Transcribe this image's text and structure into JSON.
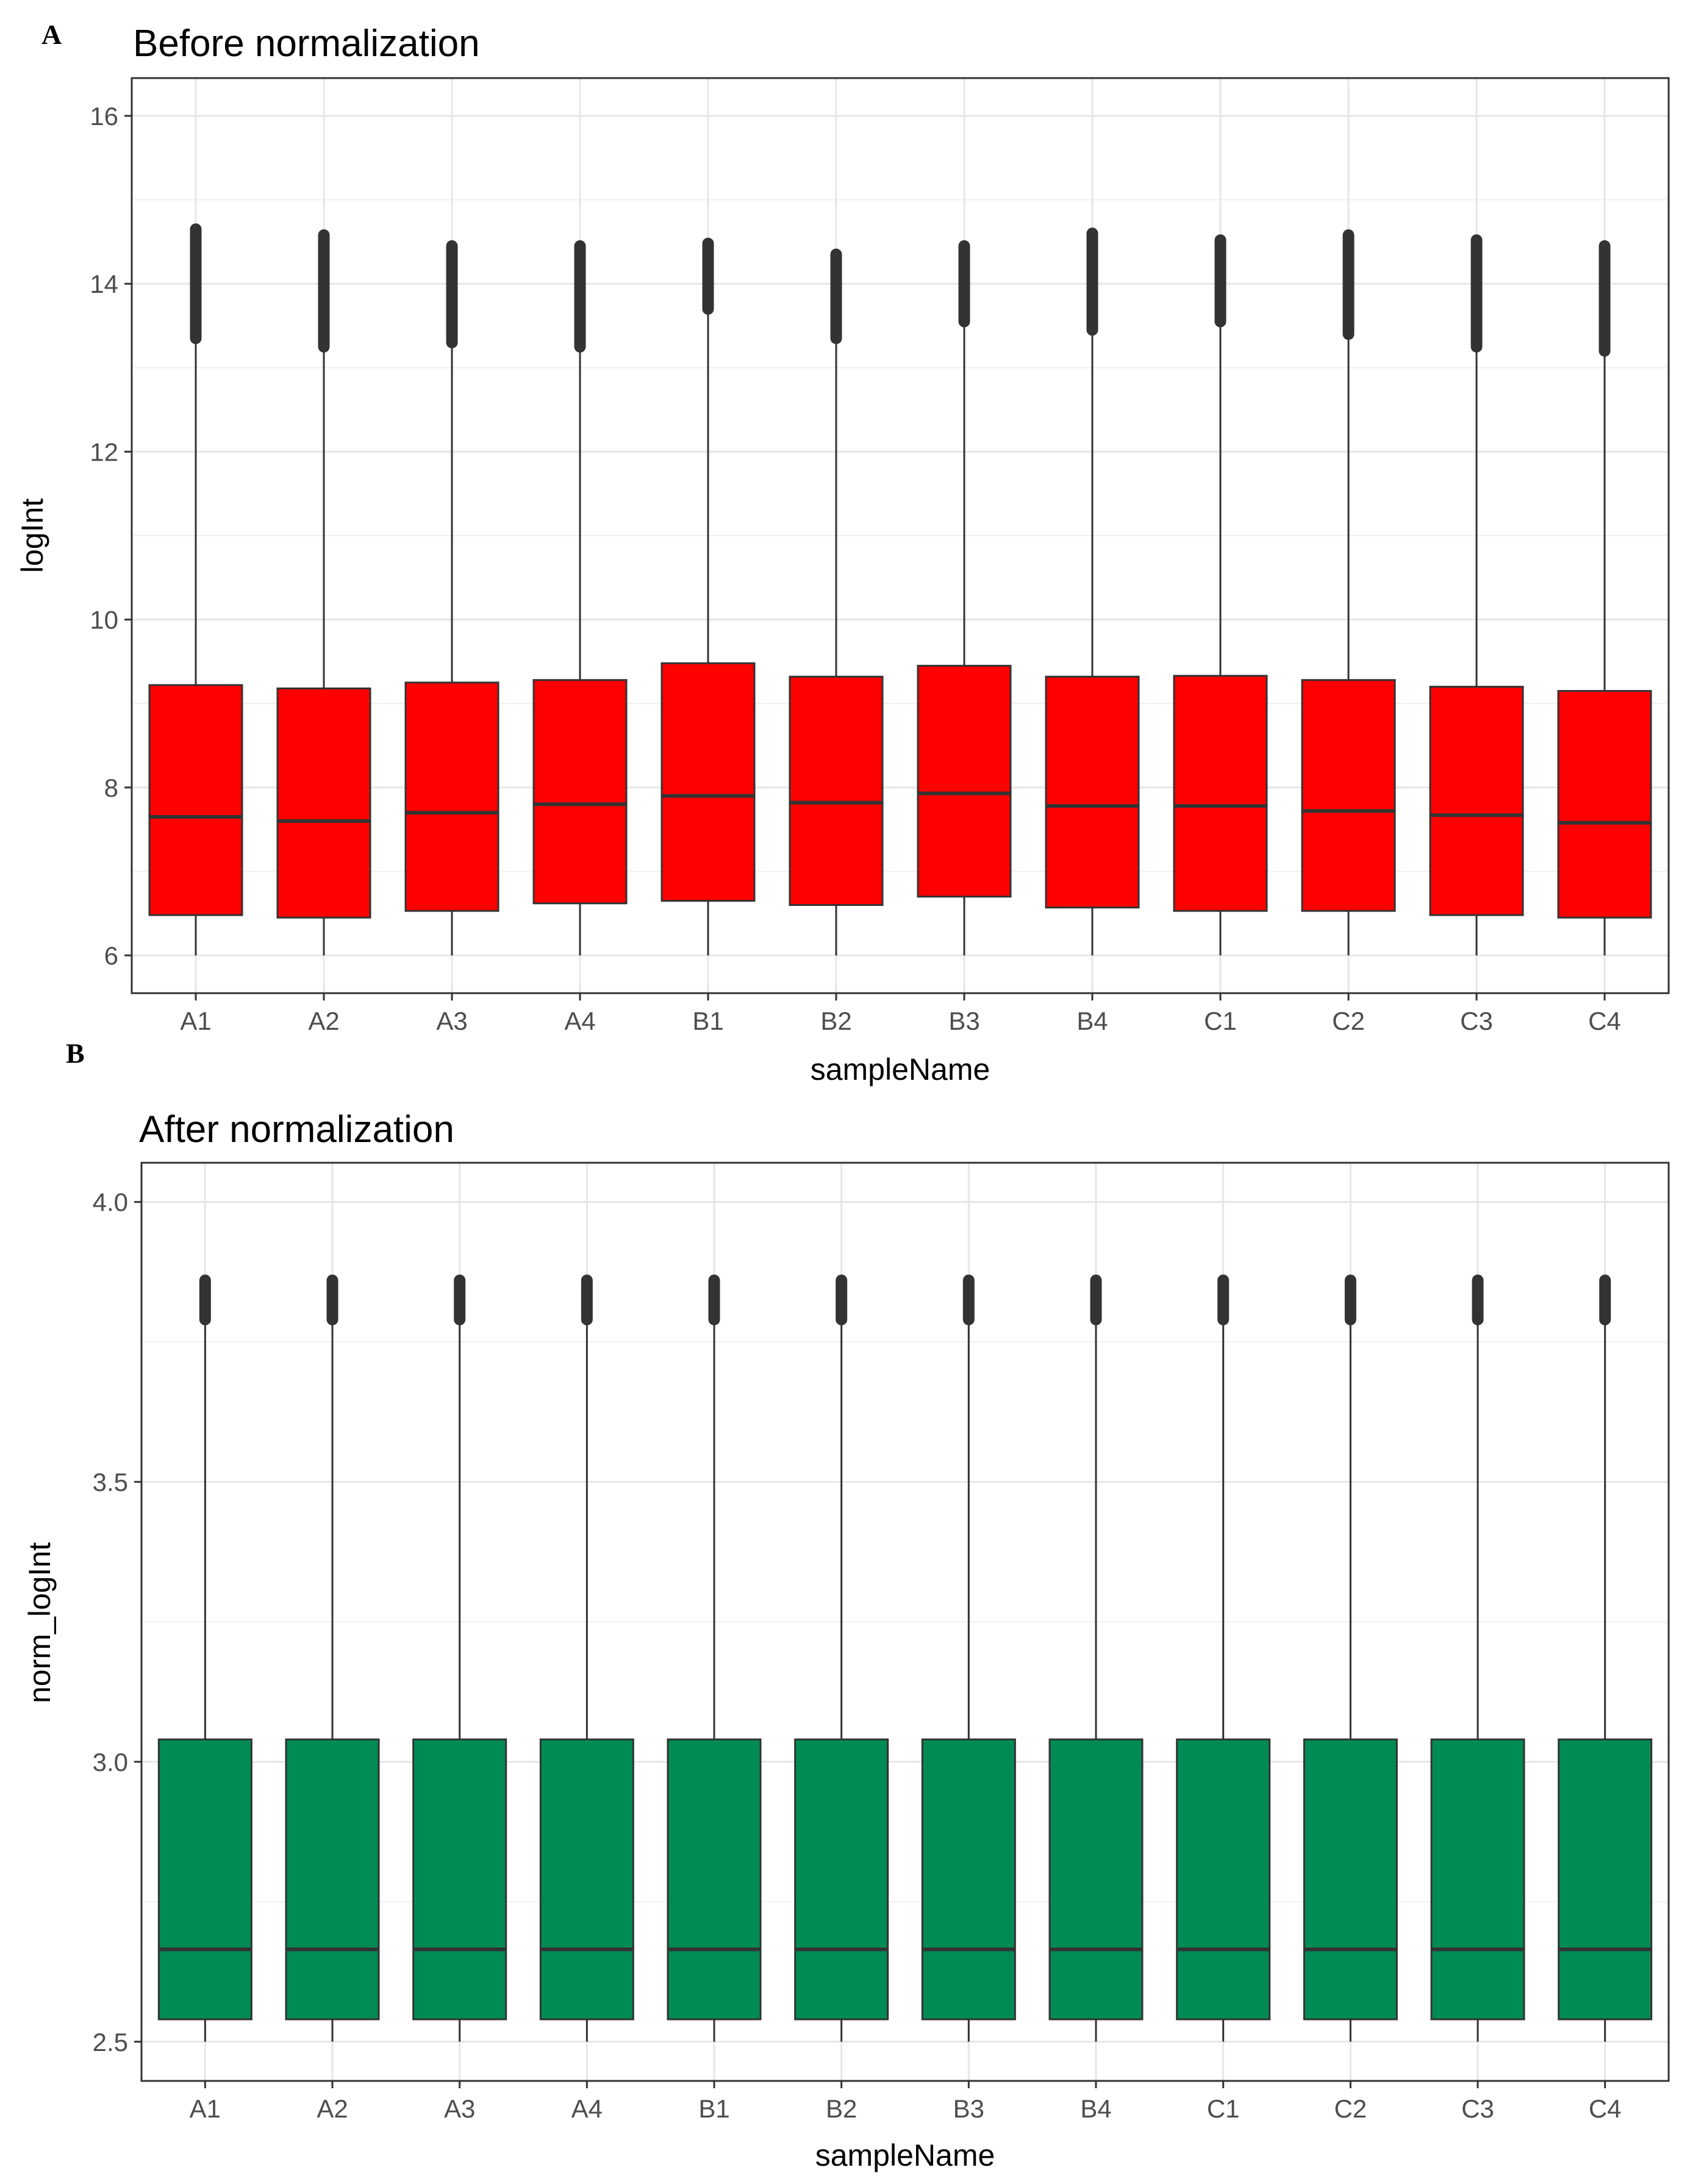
{
  "chart_data": [
    {
      "type": "boxplot",
      "panel_label": "A",
      "title": "Before normalization",
      "xlabel": "sampleName",
      "ylabel": "logInt",
      "ylim": [
        5.55,
        16.45
      ],
      "yticks": [
        6,
        8,
        10,
        12,
        14,
        16
      ],
      "grid": true,
      "fill": "#ff0000",
      "categories": [
        "A1",
        "A2",
        "A3",
        "A4",
        "B1",
        "B2",
        "B3",
        "B4",
        "C1",
        "C2",
        "C3",
        "C4"
      ],
      "series": [
        {
          "min": [
            6.0,
            6.0,
            6.0,
            6.0,
            6.0,
            6.0,
            6.0,
            6.0,
            6.0,
            6.0,
            6.0,
            6.0
          ],
          "q1": [
            6.48,
            6.45,
            6.53,
            6.62,
            6.65,
            6.6,
            6.7,
            6.57,
            6.53,
            6.53,
            6.48,
            6.45
          ],
          "median": [
            7.65,
            7.6,
            7.7,
            7.8,
            7.9,
            7.82,
            7.93,
            7.78,
            7.78,
            7.72,
            7.67,
            7.58
          ],
          "q3": [
            9.22,
            9.18,
            9.25,
            9.28,
            9.48,
            9.32,
            9.45,
            9.32,
            9.33,
            9.28,
            9.2,
            9.15
          ],
          "whisker_high": [
            13.35,
            13.25,
            13.3,
            13.25,
            13.7,
            13.35,
            13.55,
            13.45,
            13.55,
            13.4,
            13.25,
            13.2
          ],
          "outlier_max": [
            14.65,
            14.58,
            14.45,
            14.45,
            14.48,
            14.35,
            14.45,
            14.6,
            14.52,
            14.58,
            14.52,
            14.45
          ]
        }
      ]
    },
    {
      "type": "boxplot",
      "panel_label": "B",
      "title": "After normalization",
      "xlabel": "sampleName",
      "ylabel": "norm_logInt",
      "ylim": [
        2.43,
        4.07
      ],
      "yticks": [
        2.5,
        3.0,
        3.5,
        4.0
      ],
      "ytick_labels": [
        "2.5",
        "3.0",
        "3.5",
        "4.0"
      ],
      "grid": true,
      "fill": "#008b55",
      "categories": [
        "A1",
        "A2",
        "A3",
        "A4",
        "B1",
        "B2",
        "B3",
        "B4",
        "C1",
        "C2",
        "C3",
        "C4"
      ],
      "series": [
        {
          "min": [
            2.5,
            2.5,
            2.5,
            2.5,
            2.5,
            2.5,
            2.5,
            2.5,
            2.5,
            2.5,
            2.5,
            2.5
          ],
          "q1": [
            2.54,
            2.54,
            2.54,
            2.54,
            2.54,
            2.54,
            2.54,
            2.54,
            2.54,
            2.54,
            2.54,
            2.54
          ],
          "median": [
            2.665,
            2.665,
            2.665,
            2.665,
            2.665,
            2.665,
            2.665,
            2.665,
            2.665,
            2.665,
            2.665,
            2.665
          ],
          "q3": [
            3.04,
            3.04,
            3.04,
            3.04,
            3.04,
            3.04,
            3.04,
            3.04,
            3.04,
            3.04,
            3.04,
            3.04
          ],
          "whisker_high": [
            3.79,
            3.79,
            3.79,
            3.79,
            3.79,
            3.79,
            3.79,
            3.79,
            3.79,
            3.79,
            3.79,
            3.79
          ],
          "outlier_max": [
            3.86,
            3.86,
            3.86,
            3.86,
            3.86,
            3.86,
            3.86,
            3.86,
            3.86,
            3.86,
            3.86,
            3.86
          ]
        }
      ]
    }
  ]
}
